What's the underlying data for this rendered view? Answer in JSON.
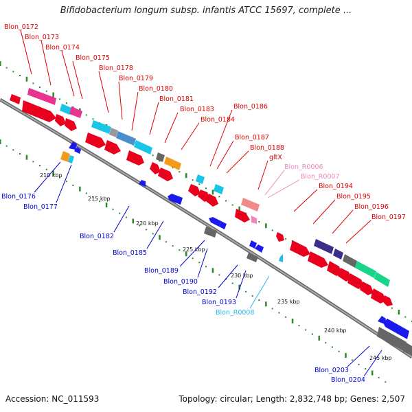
{
  "title": "Bifidobacterium longum subsp. infantis ATCC 15697, complete ...",
  "accession": "Accession: NC_011593",
  "summary": "Topology: circular; Length: 2,832,748 bp; Genes: 2,507",
  "ticks": [
    "210 kbp",
    "215 kbp",
    "220 kbp",
    "225 kbp",
    "230 kbp",
    "235 kbp",
    "240 kbp",
    "245 kbp"
  ],
  "labels_top": [
    "Blon_0172",
    "Blon_0173",
    "Blon_0174",
    "Blon_0175",
    "Blon_0178",
    "Blon_0179",
    "Blon_0180",
    "Blon_0181",
    "Blon_0183",
    "Blon_0184",
    "Blon_0186",
    "Blon_0187",
    "Blon_0188",
    "gltX",
    "Blon_R0006",
    "Blon_R0007",
    "Blon_0194",
    "Blon_0195",
    "Blon_0196",
    "Blon_0197"
  ],
  "labels_bottom": [
    "Blon_0176",
    "Blon_0177",
    "Blon_0182",
    "Blon_0185",
    "Blon_0189",
    "Blon_0190",
    "Blon_0192",
    "Blon_0193",
    "Blon_R0008",
    "Blon_0203",
    "Blon_0204"
  ],
  "colors": {
    "forward_label": "#dd0000",
    "forward_rna_label": "#ee88bb",
    "reverse_label": "#0000cc",
    "reverse_rna_label": "#22bbee",
    "backbone": "#888888",
    "gc_dots": "#228822"
  }
}
